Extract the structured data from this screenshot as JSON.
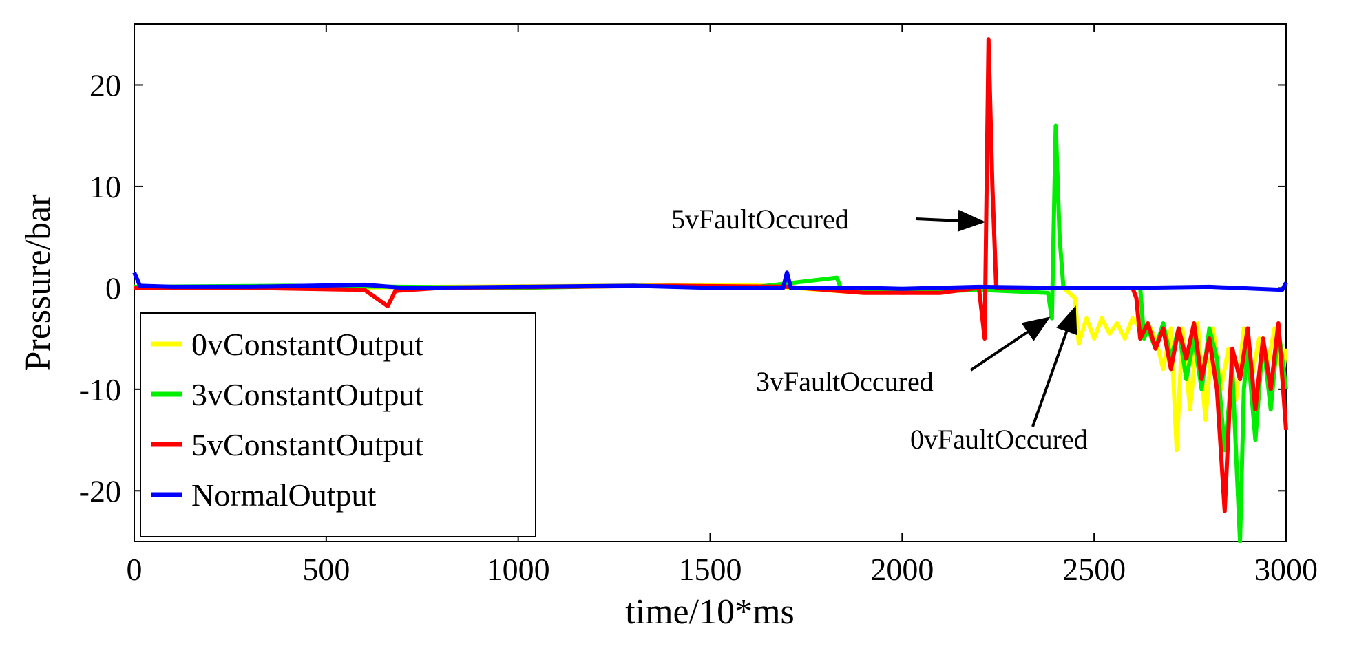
{
  "chart_data": {
    "type": "line",
    "title": "",
    "xlabel": "time/10*ms",
    "ylabel": "Pressure/bar",
    "xlim": [
      0,
      3000
    ],
    "ylim": [
      -25,
      26
    ],
    "x_ticks": [
      "0",
      "500",
      "1000",
      "1500",
      "2000",
      "2500",
      "3000"
    ],
    "y_ticks": [
      "20",
      "10",
      "0",
      "-10",
      "-20"
    ],
    "legend_position": "bottom-left",
    "series": [
      {
        "name": "0vConstantOutput",
        "color": "#ffff00",
        "points": [
          [
            0,
            0.1
          ],
          [
            300,
            0.1
          ],
          [
            500,
            0
          ],
          [
            800,
            0.1
          ],
          [
            1200,
            0.2
          ],
          [
            1600,
            0.3
          ],
          [
            1900,
            -0.5
          ],
          [
            2100,
            0
          ],
          [
            2300,
            0
          ],
          [
            2420,
            0
          ],
          [
            2450,
            -1
          ],
          [
            2460,
            -5.5
          ],
          [
            2480,
            -3
          ],
          [
            2500,
            -5
          ],
          [
            2520,
            -3
          ],
          [
            2540,
            -4.5
          ],
          [
            2560,
            -3.5
          ],
          [
            2580,
            -5
          ],
          [
            2600,
            -3
          ],
          [
            2620,
            -4
          ],
          [
            2640,
            -3.5
          ],
          [
            2660,
            -5
          ],
          [
            2680,
            -8
          ],
          [
            2700,
            -4
          ],
          [
            2715,
            -16
          ],
          [
            2730,
            -4
          ],
          [
            2750,
            -12
          ],
          [
            2770,
            -3.5
          ],
          [
            2790,
            -13
          ],
          [
            2810,
            -4
          ],
          [
            2830,
            -10
          ],
          [
            2850,
            -6
          ],
          [
            2870,
            -11
          ],
          [
            2890,
            -4
          ],
          [
            2910,
            -9
          ],
          [
            2930,
            -5
          ],
          [
            2950,
            -8
          ],
          [
            2970,
            -4
          ],
          [
            2990,
            -9
          ],
          [
            3000,
            -6
          ]
        ]
      },
      {
        "name": "3vConstantOutput",
        "color": "#00ee00",
        "points": [
          [
            0,
            0.1
          ],
          [
            400,
            0.2
          ],
          [
            700,
            0.1
          ],
          [
            1000,
            0
          ],
          [
            1300,
            0.2
          ],
          [
            1600,
            0
          ],
          [
            1830,
            1
          ],
          [
            1840,
            0
          ],
          [
            2000,
            -0.5
          ],
          [
            2200,
            -0.2
          ],
          [
            2380,
            -0.5
          ],
          [
            2390,
            -3
          ],
          [
            2400,
            16
          ],
          [
            2410,
            5
          ],
          [
            2420,
            0
          ],
          [
            2600,
            0
          ],
          [
            2620,
            0
          ],
          [
            2630,
            -5
          ],
          [
            2640,
            -4
          ],
          [
            2660,
            -6
          ],
          [
            2680,
            -3.5
          ],
          [
            2700,
            -7
          ],
          [
            2720,
            -4
          ],
          [
            2740,
            -9
          ],
          [
            2760,
            -5
          ],
          [
            2780,
            -10
          ],
          [
            2800,
            -4
          ],
          [
            2820,
            -7
          ],
          [
            2840,
            -16
          ],
          [
            2860,
            -8
          ],
          [
            2880,
            -25
          ],
          [
            2890,
            -10
          ],
          [
            2900,
            -6
          ],
          [
            2920,
            -15
          ],
          [
            2940,
            -5
          ],
          [
            2960,
            -12
          ],
          [
            2980,
            -4
          ],
          [
            3000,
            -10
          ]
        ]
      },
      {
        "name": "5vConstantOutput",
        "color": "#ff0000",
        "points": [
          [
            0,
            0
          ],
          [
            300,
            0
          ],
          [
            600,
            -0.2
          ],
          [
            660,
            -1.8
          ],
          [
            680,
            -0.3
          ],
          [
            800,
            0
          ],
          [
            1100,
            0.1
          ],
          [
            1400,
            0.2
          ],
          [
            1700,
            0.1
          ],
          [
            1900,
            -0.5
          ],
          [
            2100,
            -0.5
          ],
          [
            2200,
            0
          ],
          [
            2215,
            -5
          ],
          [
            2225,
            24.5
          ],
          [
            2235,
            10
          ],
          [
            2245,
            0
          ],
          [
            2400,
            0
          ],
          [
            2600,
            0
          ],
          [
            2610,
            -1
          ],
          [
            2620,
            -5
          ],
          [
            2640,
            -3.5
          ],
          [
            2660,
            -6
          ],
          [
            2680,
            -4
          ],
          [
            2700,
            -8
          ],
          [
            2720,
            -4
          ],
          [
            2740,
            -7
          ],
          [
            2760,
            -3.5
          ],
          [
            2780,
            -9
          ],
          [
            2800,
            -5
          ],
          [
            2820,
            -10
          ],
          [
            2840,
            -22
          ],
          [
            2860,
            -6
          ],
          [
            2880,
            -9
          ],
          [
            2900,
            -4
          ],
          [
            2920,
            -12
          ],
          [
            2940,
            -5
          ],
          [
            2960,
            -10
          ],
          [
            2980,
            -3.5
          ],
          [
            3000,
            -14
          ]
        ]
      },
      {
        "name": "NormalOutput",
        "color": "#0000ff",
        "points": [
          [
            0,
            1.5
          ],
          [
            15,
            0.2
          ],
          [
            100,
            0.1
          ],
          [
            300,
            0.1
          ],
          [
            600,
            0.3
          ],
          [
            700,
            0
          ],
          [
            1000,
            0.1
          ],
          [
            1300,
            0.2
          ],
          [
            1500,
            0
          ],
          [
            1690,
            0
          ],
          [
            1700,
            1.5
          ],
          [
            1710,
            0
          ],
          [
            1900,
            0
          ],
          [
            2000,
            -0.1
          ],
          [
            2200,
            0.1
          ],
          [
            2400,
            0
          ],
          [
            2600,
            0
          ],
          [
            2800,
            0.1
          ],
          [
            2990,
            -0.2
          ],
          [
            3000,
            0.5
          ]
        ]
      }
    ],
    "annotations": [
      {
        "text": "5vFaultOccured",
        "target_x": 2210,
        "target_y": 6.5
      },
      {
        "text": "3vFaultOccured",
        "target_x": 2380,
        "target_y": -3
      },
      {
        "text": "0vFaultOccured",
        "target_x": 2450,
        "target_y": -2
      }
    ]
  }
}
